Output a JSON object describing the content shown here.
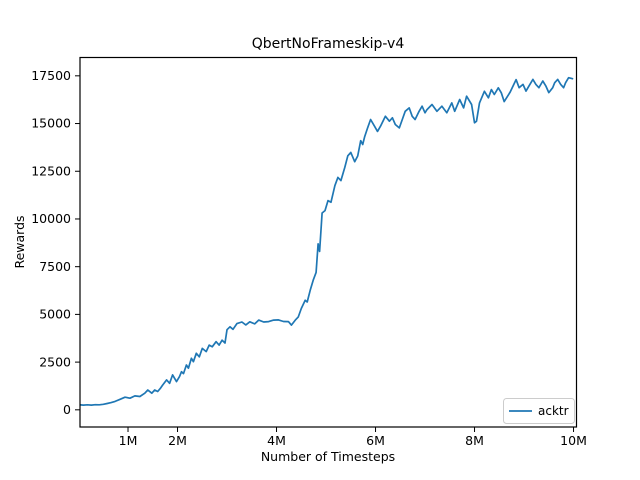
{
  "chart_data": {
    "type": "line",
    "title": "QbertNoFrameskip-v4",
    "xlabel": "Number of Timesteps",
    "ylabel": "Rewards",
    "x_unit": "millions_of_timesteps",
    "xlim": [
      0.03,
      10.06
    ],
    "ylim": [
      -900,
      18460
    ],
    "grid": false,
    "x_ticks": {
      "values": [
        1,
        2,
        4,
        6,
        8,
        10
      ],
      "labels": [
        "1M",
        "2M",
        "4M",
        "6M",
        "8M",
        "10M"
      ]
    },
    "y_ticks": {
      "values": [
        0,
        2500,
        5000,
        7500,
        10000,
        12500,
        15000,
        17500
      ],
      "labels": [
        "0",
        "2500",
        "5000",
        "7500",
        "10000",
        "12500",
        "15000",
        "17500"
      ]
    },
    "legend": {
      "position": "lower right",
      "entries": [
        {
          "label": "acktr",
          "color": "#1f77b4"
        }
      ]
    },
    "series": [
      {
        "name": "acktr",
        "color": "#1f77b4",
        "points": [
          [
            0.04,
            260
          ],
          [
            0.1,
            250
          ],
          [
            0.18,
            265
          ],
          [
            0.26,
            250
          ],
          [
            0.34,
            270
          ],
          [
            0.42,
            265
          ],
          [
            0.5,
            290
          ],
          [
            0.58,
            330
          ],
          [
            0.66,
            380
          ],
          [
            0.74,
            440
          ],
          [
            0.84,
            550
          ],
          [
            0.94,
            660
          ],
          [
            1.04,
            610
          ],
          [
            1.14,
            730
          ],
          [
            1.24,
            700
          ],
          [
            1.34,
            870
          ],
          [
            1.4,
            1040
          ],
          [
            1.48,
            870
          ],
          [
            1.54,
            1040
          ],
          [
            1.6,
            960
          ],
          [
            1.66,
            1150
          ],
          [
            1.7,
            1300
          ],
          [
            1.78,
            1570
          ],
          [
            1.84,
            1390
          ],
          [
            1.9,
            1830
          ],
          [
            1.98,
            1480
          ],
          [
            2.04,
            1740
          ],
          [
            2.08,
            2000
          ],
          [
            2.12,
            1900
          ],
          [
            2.18,
            2350
          ],
          [
            2.22,
            2180
          ],
          [
            2.28,
            2700
          ],
          [
            2.32,
            2520
          ],
          [
            2.38,
            2960
          ],
          [
            2.44,
            2780
          ],
          [
            2.5,
            3220
          ],
          [
            2.58,
            3050
          ],
          [
            2.64,
            3390
          ],
          [
            2.7,
            3300
          ],
          [
            2.78,
            3570
          ],
          [
            2.84,
            3390
          ],
          [
            2.9,
            3650
          ],
          [
            2.96,
            3500
          ],
          [
            3.0,
            4200
          ],
          [
            3.06,
            4350
          ],
          [
            3.12,
            4220
          ],
          [
            3.2,
            4520
          ],
          [
            3.3,
            4600
          ],
          [
            3.38,
            4450
          ],
          [
            3.46,
            4610
          ],
          [
            3.56,
            4500
          ],
          [
            3.64,
            4700
          ],
          [
            3.74,
            4600
          ],
          [
            3.84,
            4620
          ],
          [
            3.94,
            4700
          ],
          [
            4.04,
            4710
          ],
          [
            4.14,
            4630
          ],
          [
            4.24,
            4620
          ],
          [
            4.3,
            4440
          ],
          [
            4.38,
            4700
          ],
          [
            4.44,
            4870
          ],
          [
            4.5,
            5310
          ],
          [
            4.58,
            5740
          ],
          [
            4.62,
            5650
          ],
          [
            4.68,
            6260
          ],
          [
            4.74,
            6790
          ],
          [
            4.8,
            7200
          ],
          [
            4.84,
            8700
          ],
          [
            4.87,
            8300
          ],
          [
            4.92,
            10310
          ],
          [
            4.98,
            10440
          ],
          [
            5.04,
            10960
          ],
          [
            5.1,
            10880
          ],
          [
            5.18,
            11750
          ],
          [
            5.24,
            12180
          ],
          [
            5.3,
            12010
          ],
          [
            5.38,
            12700
          ],
          [
            5.44,
            13310
          ],
          [
            5.5,
            13490
          ],
          [
            5.58,
            13000
          ],
          [
            5.64,
            13300
          ],
          [
            5.7,
            14100
          ],
          [
            5.74,
            13900
          ],
          [
            5.78,
            14300
          ],
          [
            5.84,
            14770
          ],
          [
            5.9,
            15210
          ],
          [
            5.98,
            14860
          ],
          [
            6.04,
            14590
          ],
          [
            6.1,
            14860
          ],
          [
            6.2,
            15380
          ],
          [
            6.28,
            15120
          ],
          [
            6.34,
            15300
          ],
          [
            6.4,
            14950
          ],
          [
            6.48,
            14770
          ],
          [
            6.54,
            15210
          ],
          [
            6.6,
            15640
          ],
          [
            6.68,
            15820
          ],
          [
            6.74,
            15380
          ],
          [
            6.8,
            15210
          ],
          [
            6.88,
            15640
          ],
          [
            6.94,
            15910
          ],
          [
            7.0,
            15560
          ],
          [
            7.04,
            15730
          ],
          [
            7.14,
            16000
          ],
          [
            7.24,
            15640
          ],
          [
            7.34,
            15910
          ],
          [
            7.44,
            15560
          ],
          [
            7.54,
            16080
          ],
          [
            7.6,
            15640
          ],
          [
            7.7,
            16260
          ],
          [
            7.78,
            15820
          ],
          [
            7.84,
            16430
          ],
          [
            7.94,
            16000
          ],
          [
            8.0,
            15040
          ],
          [
            8.04,
            15120
          ],
          [
            8.1,
            16080
          ],
          [
            8.2,
            16690
          ],
          [
            8.28,
            16350
          ],
          [
            8.34,
            16780
          ],
          [
            8.4,
            16520
          ],
          [
            8.48,
            16870
          ],
          [
            8.54,
            16610
          ],
          [
            8.6,
            16150
          ],
          [
            8.66,
            16400
          ],
          [
            8.72,
            16650
          ],
          [
            8.78,
            16970
          ],
          [
            8.84,
            17300
          ],
          [
            8.9,
            16880
          ],
          [
            8.98,
            17050
          ],
          [
            9.04,
            16700
          ],
          [
            9.1,
            16970
          ],
          [
            9.18,
            17310
          ],
          [
            9.24,
            17050
          ],
          [
            9.3,
            16880
          ],
          [
            9.38,
            17230
          ],
          [
            9.44,
            16970
          ],
          [
            9.5,
            16620
          ],
          [
            9.58,
            16880
          ],
          [
            9.62,
            17140
          ],
          [
            9.68,
            17310
          ],
          [
            9.74,
            17050
          ],
          [
            9.8,
            16880
          ],
          [
            9.84,
            17140
          ],
          [
            9.9,
            17400
          ],
          [
            9.98,
            17350
          ]
        ]
      }
    ]
  },
  "colors": {
    "line": "#1f77b4",
    "axes": "#000000",
    "legend_border": "#cccccc",
    "background": "#ffffff"
  }
}
